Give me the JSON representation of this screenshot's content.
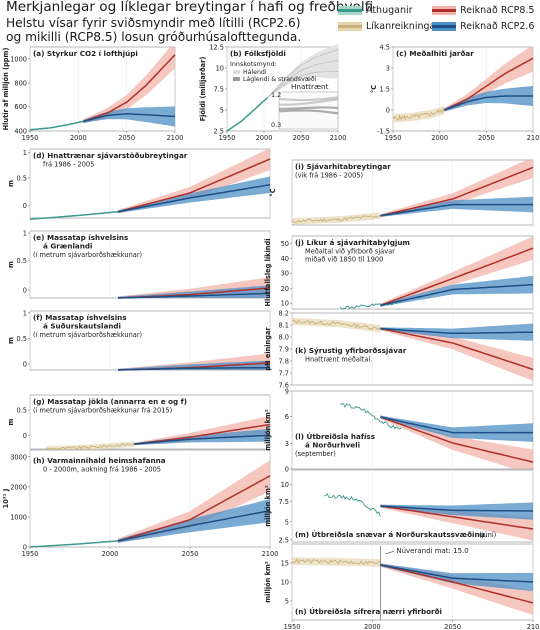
{
  "header": {
    "title": "Merkjanlegar og líklegar breytingar í hafi og freðhvolfi",
    "subtitle_line1": "Helstu vísar fyrir sviðsmyndir með lítilli (RCP2.6)",
    "subtitle_line2": "og mikilli (RCP8.5) losun gróðurhúsalofttegunda."
  },
  "legend": {
    "observations": "Athuganir",
    "models": "Líkanreikningar",
    "rcp85": "Reiknað RCP8.5",
    "rcp26": "Reiknað RCP2.6"
  },
  "colors": {
    "observations": "#3a9a8c",
    "models": "#c9b07a",
    "rcp85": "#b0312b",
    "rcp85_band": "#f2b4aa",
    "rcp26": "#1d4f86",
    "rcp26_band": "#4e8fc5",
    "historical_line": "#1a3d6b",
    "gray_band": "#cfcfcf"
  },
  "chart_data": [
    {
      "id": "a",
      "type": "line",
      "title": "(a) Styrkur CO2 í lofthjúpi",
      "ylabel": "Hlutir af milljón (ppm)",
      "yticks": [
        "1000",
        "800",
        "600",
        "400"
      ],
      "xticks": [
        "1950",
        "2000",
        "2050",
        "2100"
      ],
      "xlim": [
        1950,
        2100
      ],
      "ylim": [
        300,
        1000
      ],
      "series": [
        {
          "name": "historical",
          "x": [
            1950,
            1970,
            1990,
            2005
          ],
          "y": [
            311,
            325,
            354,
            380
          ]
        },
        {
          "name": "RCP8.5",
          "x": [
            2005,
            2030,
            2050,
            2070,
            2100
          ],
          "y": [
            380,
            450,
            540,
            680,
            936
          ]
        },
        {
          "name": "RCP2.6",
          "x": [
            2005,
            2030,
            2050,
            2070,
            2100
          ],
          "y": [
            380,
            430,
            443,
            436,
            421
          ]
        }
      ]
    },
    {
      "id": "b",
      "type": "area",
      "title": "(b) Fólksfjöldi",
      "inset_title": "Innskotsmynd:",
      "inset_legend": [
        "Hálendi",
        "Láglendi & strandsvæði"
      ],
      "ylabel": "Fjöldi (milljarðar)",
      "annotation": "Hnattrænt",
      "yticks": [
        "12.5",
        "10",
        "7.5",
        "5",
        "2.5"
      ],
      "inset_ticks": [
        "1.2",
        "0.3"
      ],
      "xticks": [
        "1950",
        "2000",
        "2050",
        "2100"
      ],
      "xlim": [
        1950,
        2100
      ],
      "ylim": [
        2.5,
        12.5
      ],
      "series": [
        {
          "name": "historical",
          "x": [
            1950,
            1970,
            1990,
            2005
          ],
          "y": [
            2.5,
            3.7,
            5.3,
            6.5
          ]
        },
        {
          "name": "projection",
          "x": [
            2005,
            2030,
            2050,
            2070,
            2100
          ],
          "y": [
            6.5,
            8.5,
            9.7,
            10.4,
            10.9
          ]
        }
      ]
    },
    {
      "id": "c",
      "type": "line",
      "title": "(c) Meðalhiti jarðar",
      "subtitle": "(vik frá 1986 - 2005)",
      "ylabel": "°C",
      "yticks": [
        "4.5",
        "3",
        "1.5",
        "0",
        "-1.5"
      ],
      "xticks": [
        "1950",
        "2000",
        "2050",
        "210"
      ],
      "xlim": [
        1950,
        2100
      ],
      "ylim": [
        -1.5,
        4.5
      ],
      "series": [
        {
          "name": "models",
          "x": [
            1950,
            1970,
            1990,
            2005
          ],
          "y": [
            -0.6,
            -0.5,
            -0.3,
            0.0
          ]
        },
        {
          "name": "RCP8.5",
          "x": [
            2005,
            2030,
            2050,
            2070,
            2100
          ],
          "y": [
            0.0,
            0.8,
            1.7,
            2.6,
            3.7
          ]
        },
        {
          "name": "RCP2.6",
          "x": [
            2005,
            2030,
            2050,
            2070,
            2100
          ],
          "y": [
            0.0,
            0.6,
            0.9,
            1.0,
            1.0
          ]
        }
      ]
    },
    {
      "id": "d",
      "type": "line",
      "title": "(d) Hnattrænar sjávarstöðubreytingar",
      "subtitle": "frá 1986 - 2005",
      "ylabel": "m",
      "yticks": [
        "1",
        "0.5",
        "0"
      ],
      "xlim": [
        1950,
        2100
      ],
      "ylim": [
        -0.1,
        1.0
      ],
      "series": [
        {
          "name": "historical",
          "x": [
            1950,
            1980,
            2005
          ],
          "y": [
            -0.12,
            -0.06,
            0.0
          ]
        },
        {
          "name": "RCP8.5",
          "x": [
            2005,
            2050,
            2100
          ],
          "y": [
            0.0,
            0.3,
            0.84
          ]
        },
        {
          "name": "RCP2.6",
          "x": [
            2005,
            2050,
            2100
          ],
          "y": [
            0.0,
            0.22,
            0.43
          ]
        }
      ]
    },
    {
      "id": "e",
      "type": "line",
      "title": "(e) Massatap íshvelsins",
      "title2": "á Grænlandi",
      "subtitle": "(í metrum sjávarborðshækkunar)",
      "ylabel": "m",
      "yticks": [
        "1",
        "0.5",
        "0"
      ],
      "xlim": [
        1950,
        2100
      ],
      "ylim": [
        0,
        1.0
      ],
      "series": [
        {
          "name": "RCP8.5",
          "x": [
            2005,
            2050,
            2100
          ],
          "y": [
            0.0,
            0.05,
            0.15
          ]
        },
        {
          "name": "RCP2.6",
          "x": [
            2005,
            2050,
            2100
          ],
          "y": [
            0.0,
            0.03,
            0.07
          ]
        }
      ]
    },
    {
      "id": "f",
      "type": "line",
      "title": "(f) Massatap íshvelsins",
      "title2": "á Suðurskautslandi",
      "subtitle": "(í metrum sjávarborðshækkunar)",
      "ylabel": "m",
      "yticks": [
        "1",
        "0.5",
        "0"
      ],
      "xlim": [
        1950,
        2100
      ],
      "ylim": [
        0,
        1.0
      ],
      "series": [
        {
          "name": "RCP8.5",
          "x": [
            2005,
            2050,
            2100
          ],
          "y": [
            0.0,
            0.04,
            0.12
          ]
        },
        {
          "name": "RCP2.6",
          "x": [
            2005,
            2050,
            2100
          ],
          "y": [
            0.0,
            0.03,
            0.04
          ]
        }
      ]
    },
    {
      "id": "g",
      "type": "line",
      "title": "(g) Massatap jökla (annarra en e og f)",
      "subtitle": "(í metrum sjávarborðshækkunar frá 2015)",
      "ylabel": "m",
      "yticks": [
        "0.5",
        "0"
      ],
      "xlim": [
        1950,
        2100
      ],
      "ylim": [
        -0.05,
        0.5
      ],
      "series": [
        {
          "name": "models",
          "x": [
            1960,
            1990,
            2015
          ],
          "y": [
            -0.05,
            -0.03,
            0.0
          ]
        },
        {
          "name": "RCP8.5",
          "x": [
            2015,
            2050,
            2100
          ],
          "y": [
            0.0,
            0.07,
            0.2
          ]
        },
        {
          "name": "RCP2.6",
          "x": [
            2015,
            2050,
            2100
          ],
          "y": [
            0.0,
            0.05,
            0.09
          ]
        }
      ]
    },
    {
      "id": "h",
      "type": "line",
      "title": "(h) Varmainnihald heimshafanna",
      "subtitle": "0 - 2000m, aukning frá 1986 - 2005",
      "ylabel": "10²¹ J",
      "yticks": [
        "3000",
        "2000",
        "1000",
        "0"
      ],
      "xticks": [
        "1950",
        "2000",
        "2050",
        "2100"
      ],
      "xlim": [
        1950,
        2100
      ],
      "ylim": [
        -200,
        3000
      ],
      "series": [
        {
          "name": "historical",
          "x": [
            1950,
            1980,
            2005
          ],
          "y": [
            -200,
            -100,
            0
          ]
        },
        {
          "name": "RCP8.5",
          "x": [
            2005,
            2050,
            2100
          ],
          "y": [
            0,
            700,
            2150
          ]
        },
        {
          "name": "RCP2.6",
          "x": [
            2005,
            2050,
            2100
          ],
          "y": [
            0,
            500,
            1000
          ]
        }
      ]
    },
    {
      "id": "i",
      "type": "line",
      "title": "(i) Sjávarhitabreytingar",
      "subtitle": "(vik frá 1986 - 2005)",
      "ylabel": "°C",
      "xlim": [
        1950,
        2100
      ],
      "ylim": [
        -0.5,
        3.0
      ],
      "series": [
        {
          "name": "models",
          "x": [
            1950,
            1980,
            2005
          ],
          "y": [
            -0.3,
            -0.2,
            0.0
          ]
        },
        {
          "name": "RCP8.5",
          "x": [
            2005,
            2050,
            2100
          ],
          "y": [
            0.0,
            0.9,
            2.6
          ]
        },
        {
          "name": "RCP2.6",
          "x": [
            2005,
            2050,
            2100
          ],
          "y": [
            0.0,
            0.6,
            0.6
          ]
        }
      ]
    },
    {
      "id": "j",
      "type": "line",
      "title": "(j) Líkur á sjávarhitabylgjum",
      "subtitle": "Meðaltal við yfirborð sjávar",
      "subtitle2": "miðað við 1850 til 1900",
      "ylabel": "Hlutfallsleg líkindi",
      "yticks": [
        "50",
        "40",
        "30",
        "20",
        "10"
      ],
      "xlim": [
        1950,
        2100
      ],
      "ylim": [
        0,
        60
      ],
      "series": [
        {
          "name": "observations",
          "x": [
            1980,
            1995,
            2010,
            2018
          ],
          "y": [
            1,
            2,
            4,
            7
          ]
        },
        {
          "name": "RCP8.5",
          "x": [
            2005,
            2050,
            2100
          ],
          "y": [
            3,
            25,
            50
          ]
        },
        {
          "name": "RCP2.6",
          "x": [
            2005,
            2050,
            2100
          ],
          "y": [
            3,
            16,
            20
          ]
        }
      ]
    },
    {
      "id": "k",
      "type": "line",
      "title": "(k) Sýrustig yfirborðssjávar",
      "subtitle": "Hnattrænt meðaltal.",
      "ylabel": "pH einingar",
      "yticks": [
        "8.2",
        "8.1",
        "8.0",
        "7.9",
        "7.8",
        "7.7",
        "7.6"
      ],
      "xlim": [
        1950,
        2100
      ],
      "ylim": [
        7.6,
        8.2
      ],
      "series": [
        {
          "name": "models",
          "x": [
            1950,
            1980,
            2005
          ],
          "y": [
            8.13,
            8.11,
            8.07
          ]
        },
        {
          "name": "RCP8.5",
          "x": [
            2005,
            2050,
            2100
          ],
          "y": [
            8.07,
            7.95,
            7.73
          ]
        },
        {
          "name": "RCP2.6",
          "x": [
            2005,
            2050,
            2100
          ],
          "y": [
            8.07,
            8.03,
            8.04
          ]
        }
      ]
    },
    {
      "id": "l",
      "type": "line",
      "title": "(l) Útbreiðsla hafíss",
      "title2": "á Norðurhveli",
      "subtitle": "(september)",
      "ylabel": "milljón km²",
      "yticks": [
        "9",
        "6",
        "3",
        "0"
      ],
      "xlim": [
        1950,
        2100
      ],
      "ylim": [
        0,
        9
      ],
      "series": [
        {
          "name": "observations",
          "x": [
            1980,
            1995,
            2010,
            2018
          ],
          "y": [
            7.5,
            6.8,
            5.0,
            4.6
          ]
        },
        {
          "name": "RCP8.5",
          "x": [
            2005,
            2050,
            2100
          ],
          "y": [
            6.0,
            3.0,
            0.8
          ]
        },
        {
          "name": "RCP2.6",
          "x": [
            2005,
            2050,
            2100
          ],
          "y": [
            6.0,
            4.2,
            4.2
          ]
        }
      ]
    },
    {
      "id": "m",
      "type": "line",
      "title": "(m) Útbreiðsla snævar á Norðurskautssvæðinu",
      "title_suffix": "(júní)",
      "ylabel": "milljón km²",
      "yticks": [
        "10",
        "7.5",
        "5",
        "2.5"
      ],
      "xlim": [
        1950,
        2100
      ],
      "ylim": [
        0,
        10
      ],
      "series": [
        {
          "name": "observations",
          "x": [
            1970,
            1990,
            2005
          ],
          "y": [
            6.5,
            6.0,
            3.8
          ]
        },
        {
          "name": "RCP8.5",
          "x": [
            2005,
            2050,
            2100
          ],
          "y": [
            5.0,
            3.5,
            1.8
          ]
        },
        {
          "name": "RCP2.6",
          "x": [
            2005,
            2050,
            2100
          ],
          "y": [
            5.0,
            4.4,
            4.3
          ]
        }
      ]
    },
    {
      "id": "n",
      "type": "line",
      "title": "(n) Útbreiðsla sífrera nærri yfirborði",
      "ylabel": "milljón km²",
      "annotation": "Núverandi mat: 15.0",
      "yticks": [
        "15",
        "10",
        "5"
      ],
      "xticks": [
        "1950",
        "2000",
        "2050",
        "210"
      ],
      "xlim": [
        1950,
        2100
      ],
      "ylim": [
        0,
        20
      ],
      "series": [
        {
          "name": "models",
          "x": [
            1950,
            1980,
            2005
          ],
          "y": [
            15.5,
            15.3,
            15.0
          ]
        },
        {
          "name": "RCP8.5",
          "x": [
            2005,
            2050,
            2100
          ],
          "y": [
            14.5,
            10.0,
            4.5
          ]
        },
        {
          "name": "RCP2.6",
          "x": [
            2005,
            2050,
            2100
          ],
          "y": [
            14.5,
            11.0,
            10.0
          ]
        }
      ]
    }
  ]
}
